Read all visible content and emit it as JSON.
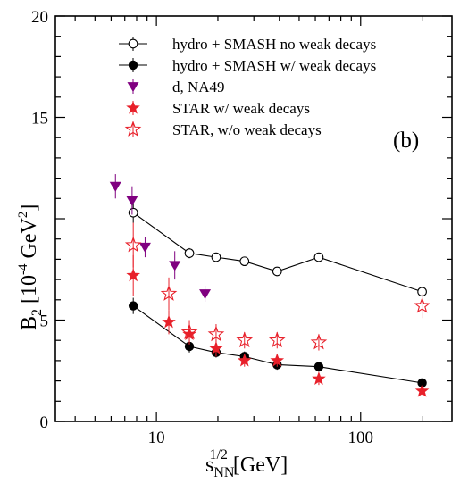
{
  "chart_data": {
    "type": "scatter",
    "panel_label": "(b)",
    "xlabel": {
      "base": "s",
      "sup": "1/2",
      "sub": "NN",
      "unit": " [GeV]"
    },
    "ylabel": {
      "base": "B",
      "sub": "2",
      "unit_pre": " [10",
      "unit_exp": "-4",
      "unit_mid": " GeV",
      "unit_exp2": "2",
      "unit_post": "]"
    },
    "xscale": "log",
    "xlim": [
      3.2,
      280
    ],
    "ylim": [
      0,
      20
    ],
    "y_ticks": [
      "0",
      "5",
      "15",
      "20"
    ],
    "x_ticks": [
      "10",
      "100"
    ],
    "legend_position": "top-right",
    "colors": {
      "hydro": "#000000",
      "na49": "#800080",
      "star": "#e8202a"
    },
    "series": [
      {
        "name": "hydro + SMASH no weak decays",
        "marker": "open-circle",
        "connected": true,
        "x": [
          7.7,
          14.5,
          19.6,
          27,
          39,
          62.4,
          200
        ],
        "y": [
          10.3,
          8.3,
          8.1,
          7.9,
          7.4,
          8.1,
          6.4
        ],
        "err": [
          0.5,
          0.25,
          0.2,
          0.2,
          0.2,
          0.2,
          0.25
        ]
      },
      {
        "name": "hydro + SMASH w/ weak decays",
        "marker": "filled-circle",
        "connected": true,
        "x": [
          7.7,
          14.5,
          19.6,
          27,
          39,
          62.4,
          200
        ],
        "y": [
          5.7,
          3.7,
          3.4,
          3.2,
          2.8,
          2.7,
          1.9
        ],
        "err": [
          0.4,
          0.3,
          0.25,
          0.25,
          0.25,
          0.25,
          0.25
        ]
      },
      {
        "name": "d, NA49",
        "marker": "down-triangle",
        "connected": false,
        "x": [
          6.3,
          7.6,
          8.8,
          12.3,
          17.3
        ],
        "y": [
          11.6,
          10.9,
          8.6,
          7.7,
          6.3
        ],
        "err": [
          0.6,
          0.7,
          0.5,
          0.7,
          0.4
        ]
      },
      {
        "name": "STAR w/ weak decays",
        "marker": "filled-star",
        "connected": false,
        "x": [
          7.7,
          11.5,
          14.5,
          19.6,
          27,
          39,
          62.4,
          200
        ],
        "y": [
          7.2,
          4.9,
          4.3,
          3.6,
          3.0,
          3.0,
          2.1,
          1.5
        ],
        "err": [
          1.0,
          0.6,
          0.5,
          0.4,
          0.3,
          0.3,
          0.3,
          0.2
        ]
      },
      {
        "name": "STAR, w/o weak decays",
        "marker": "open-star",
        "connected": false,
        "x": [
          7.7,
          11.5,
          14.5,
          19.6,
          27,
          39,
          62.4,
          200
        ],
        "y": [
          8.7,
          6.3,
          4.4,
          4.3,
          4.0,
          4.0,
          3.9,
          5.7
        ],
        "err": [
          1.1,
          0.8,
          0.6,
          0.5,
          0.4,
          0.4,
          0.4,
          0.6
        ]
      }
    ]
  }
}
